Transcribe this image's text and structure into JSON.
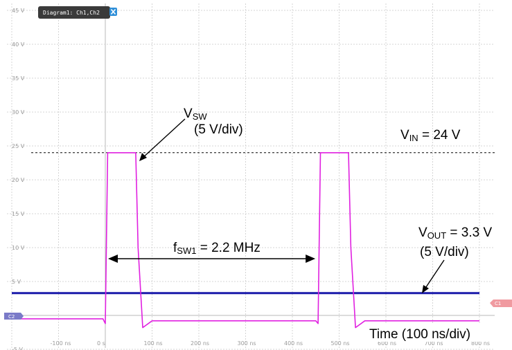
{
  "chart_data": {
    "type": "line",
    "toolbar": {
      "tab_label": "Diagram1: Ch1,Ch2",
      "close_icon": "close-icon",
      "tab_color": "#3a3a3a",
      "close_color": "#2f8fd8"
    },
    "x_ticks": [
      "-100 ns",
      "0 s",
      "100 ns",
      "200 ns",
      "300 ns",
      "400 ns",
      "500 ns",
      "600 ns",
      "700 ns",
      "800 ns"
    ],
    "y_ticks": [
      "45 V",
      "40 V",
      "35 V",
      "30 V",
      "25 V",
      "20 V",
      "15 V",
      "10 V",
      "5 V",
      "-5 V"
    ],
    "xlim": [
      -200,
      800
    ],
    "ylim": [
      -7,
      45
    ],
    "series": [
      {
        "name": "VSW",
        "color": "#e020e0",
        "x": [
          -200,
          -5,
          0,
          5,
          65,
          70,
          80,
          100,
          450,
          455,
          460,
          520,
          525,
          535,
          555,
          800
        ],
        "y": [
          -0.5,
          -0.5,
          -1.2,
          24,
          24,
          10,
          -1.8,
          -0.8,
          -0.8,
          -1.2,
          24,
          24,
          10,
          -1.8,
          -0.8,
          -0.8
        ]
      },
      {
        "name": "VOUT",
        "color": "#1a1aaa",
        "x": [
          -200,
          800
        ],
        "y": [
          3.3,
          3.3
        ]
      }
    ],
    "reference_line": {
      "y": 24,
      "style": "dashed",
      "color": "#000000"
    },
    "annotations": {
      "vsw": {
        "main": "V",
        "sub": "SW",
        "scale": "(5 V/div)"
      },
      "vin": {
        "main": "V",
        "sub": "IN",
        "suffix": " = 24 V"
      },
      "freq": {
        "main": "f",
        "sub": "SW1",
        "suffix": " = 2.2 MHz",
        "x_start": 0,
        "x_end": 455
      },
      "vout": {
        "main": "V",
        "sub": "OUT",
        "suffix": " = 3.3 V",
        "scale": "(5 V/div)"
      },
      "time": "Time (100 ns/div)"
    },
    "markers": {
      "ch2_label": "C2",
      "ch1_label": "C1"
    },
    "grid": true
  }
}
